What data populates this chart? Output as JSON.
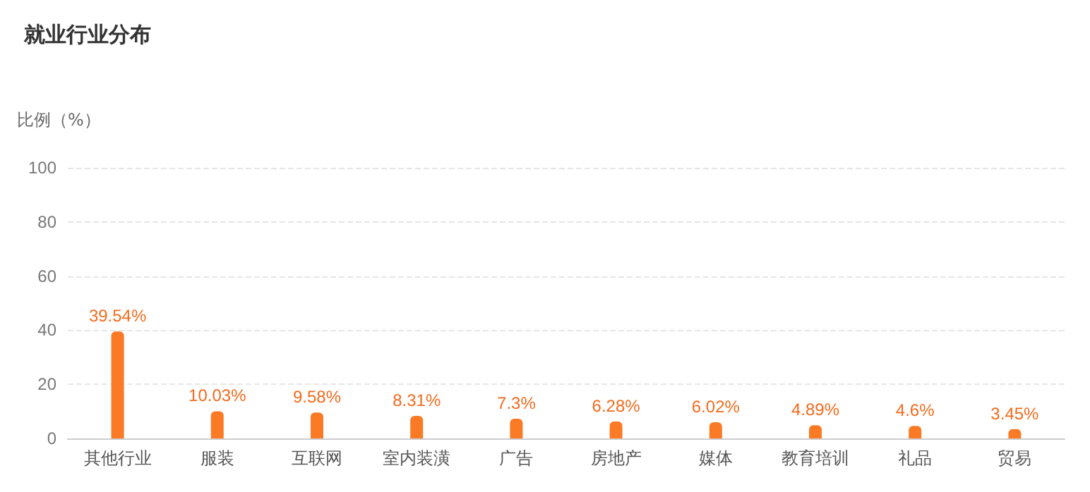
{
  "chart_data": {
    "type": "bar",
    "title": "就业行业分布",
    "ylabel": "比例（%）",
    "categories": [
      "其他行业",
      "服装",
      "互联网",
      "室内装潢",
      "广告",
      "房地产",
      "媒体",
      "教育培训",
      "礼品",
      "贸易"
    ],
    "values": [
      39.54,
      10.03,
      9.58,
      8.31,
      7.3,
      6.28,
      6.02,
      4.89,
      4.6,
      3.45
    ],
    "value_labels": [
      "39.54%",
      "10.03%",
      "9.58%",
      "8.31%",
      "7.3%",
      "6.28%",
      "6.02%",
      "4.89%",
      "4.6%",
      "3.45%"
    ],
    "color": "#fa7a26",
    "ylim": [
      0,
      100
    ],
    "yticks": [
      0,
      20,
      40,
      60,
      80,
      100
    ],
    "grid": "y"
  }
}
